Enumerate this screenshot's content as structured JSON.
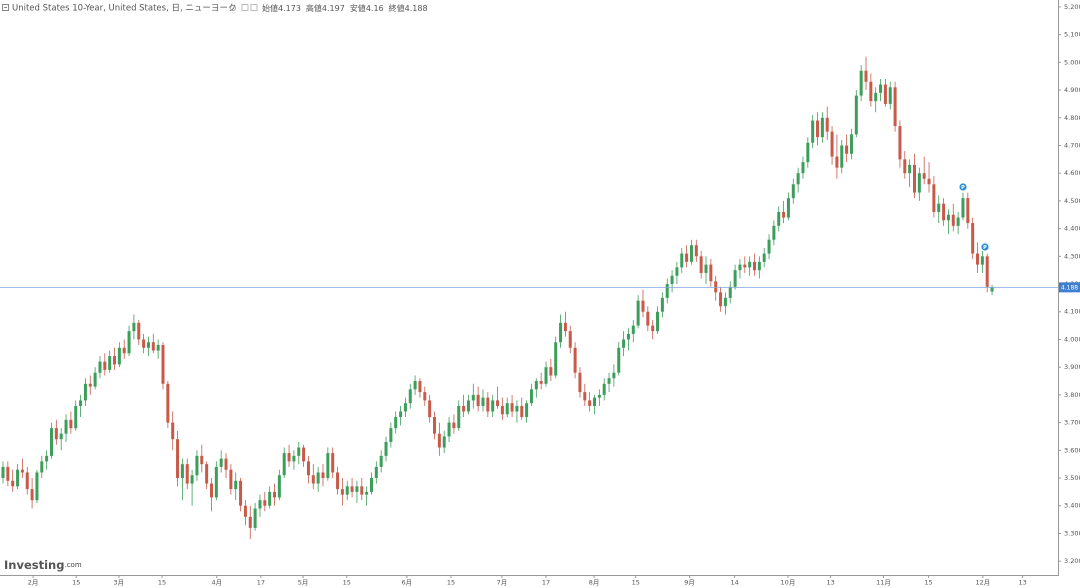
{
  "chart_data": {
    "type": "candlestick",
    "title": "United States 10-Year, United States, 日, ニューヨーク",
    "ohlc": [
      {
        "label": "始値",
        "value": 4.173
      },
      {
        "label": "高値",
        "value": 4.197
      },
      {
        "label": "安値",
        "value": 4.16
      },
      {
        "label": "終値",
        "value": 4.188
      }
    ],
    "up_color": "#3c9e5a",
    "down_color": "#c85a4a",
    "price_line": 4.188,
    "price_line_color": "#7fa9dd",
    "markers": [
      "P",
      "P"
    ],
    "watermark": {
      "brand": "Investing",
      "suffix": ".com"
    },
    "xlim": [
      -0.62,
      217.6
    ],
    "xticks": [
      {
        "value": 6.2,
        "label": "2月"
      },
      {
        "value": 15.1,
        "label": "15"
      },
      {
        "value": 23.9,
        "label": "3月"
      },
      {
        "value": 32.8,
        "label": "15"
      },
      {
        "value": 44.1,
        "label": "4月"
      },
      {
        "value": 53.2,
        "label": "17"
      },
      {
        "value": 61.9,
        "label": "5月"
      },
      {
        "value": 70.9,
        "label": "15"
      },
      {
        "value": 83.3,
        "label": "6月"
      },
      {
        "value": 92.4,
        "label": "15"
      },
      {
        "value": 102.9,
        "label": "7月"
      },
      {
        "value": 112,
        "label": "17"
      },
      {
        "value": 121.9,
        "label": "8月"
      },
      {
        "value": 130.5,
        "label": "15"
      },
      {
        "value": 141.6,
        "label": "9月"
      },
      {
        "value": 150.9,
        "label": "14"
      },
      {
        "value": 161.9,
        "label": "10月"
      },
      {
        "value": 170.7,
        "label": "13"
      },
      {
        "value": 181.6,
        "label": "11月"
      },
      {
        "value": 190.9,
        "label": "15"
      },
      {
        "value": 202.1,
        "label": "12月"
      },
      {
        "value": 210.3,
        "label": "13"
      }
    ],
    "ylim": [
      3.15,
      5.225
    ],
    "yticks": [
      {
        "value": 3.2,
        "label": "3.200"
      },
      {
        "value": 3.3,
        "label": "3.300"
      },
      {
        "value": 3.4,
        "label": "3.400"
      },
      {
        "value": 3.5,
        "label": "3.500"
      },
      {
        "value": 3.6,
        "label": "3.600"
      },
      {
        "value": 3.7,
        "label": "3.700"
      },
      {
        "value": 3.8,
        "label": "3.800"
      },
      {
        "value": 3.9,
        "label": "3.900"
      },
      {
        "value": 4.0,
        "label": "4.000"
      },
      {
        "value": 4.1,
        "label": "4.100"
      },
      {
        "value": 4.2,
        "label": "4.200"
      },
      {
        "value": 4.3,
        "label": "4.300"
      },
      {
        "value": 4.4,
        "label": "4.400"
      },
      {
        "value": 4.5,
        "label": "4.500"
      },
      {
        "value": 4.6,
        "label": "4.600"
      },
      {
        "value": 4.7,
        "label": "4.700"
      },
      {
        "value": 4.8,
        "label": "4.800"
      },
      {
        "value": 4.9,
        "label": "4.900"
      },
      {
        "value": 5.0,
        "label": "5.000"
      },
      {
        "value": 5.1,
        "label": "5.100"
      },
      {
        "value": 5.2,
        "label": "5.200"
      }
    ],
    "candles": [
      [
        3.5,
        3.56,
        3.48,
        3.54
      ],
      [
        3.54,
        3.56,
        3.47,
        3.49
      ],
      [
        3.49,
        3.53,
        3.45,
        3.47
      ],
      [
        3.47,
        3.55,
        3.46,
        3.53
      ],
      [
        3.53,
        3.57,
        3.5,
        3.52
      ],
      [
        3.52,
        3.54,
        3.44,
        3.46
      ],
      [
        3.46,
        3.5,
        3.39,
        3.42
      ],
      [
        3.42,
        3.53,
        3.41,
        3.52
      ],
      [
        3.52,
        3.58,
        3.5,
        3.56
      ],
      [
        3.56,
        3.6,
        3.53,
        3.58
      ],
      [
        3.58,
        3.7,
        3.57,
        3.68
      ],
      [
        3.68,
        3.71,
        3.62,
        3.64
      ],
      [
        3.64,
        3.68,
        3.6,
        3.66
      ],
      [
        3.66,
        3.73,
        3.63,
        3.71
      ],
      [
        3.71,
        3.74,
        3.66,
        3.68
      ],
      [
        3.68,
        3.78,
        3.67,
        3.76
      ],
      [
        3.76,
        3.8,
        3.72,
        3.78
      ],
      [
        3.78,
        3.86,
        3.76,
        3.84
      ],
      [
        3.84,
        3.87,
        3.8,
        3.83
      ],
      [
        3.83,
        3.9,
        3.82,
        3.88
      ],
      [
        3.88,
        3.94,
        3.86,
        3.92
      ],
      [
        3.92,
        3.95,
        3.87,
        3.89
      ],
      [
        3.89,
        3.96,
        3.88,
        3.94
      ],
      [
        3.94,
        3.97,
        3.89,
        3.91
      ],
      [
        3.91,
        3.99,
        3.9,
        3.97
      ],
      [
        3.97,
        4.0,
        3.93,
        3.95
      ],
      [
        3.95,
        4.05,
        3.94,
        4.03
      ],
      [
        4.03,
        4.09,
        4.0,
        4.06
      ],
      [
        4.06,
        4.07,
        3.98,
        4.0
      ],
      [
        4.0,
        4.02,
        3.95,
        3.97
      ],
      [
        3.97,
        4.01,
        3.94,
        3.99
      ],
      [
        3.99,
        4.02,
        3.95,
        3.96
      ],
      [
        3.96,
        4.0,
        3.93,
        3.98
      ],
      [
        3.98,
        3.99,
        3.82,
        3.84
      ],
      [
        3.84,
        3.85,
        3.68,
        3.7
      ],
      [
        3.7,
        3.74,
        3.6,
        3.64
      ],
      [
        3.64,
        3.67,
        3.47,
        3.5
      ],
      [
        3.5,
        3.57,
        3.42,
        3.55
      ],
      [
        3.55,
        3.57,
        3.46,
        3.48
      ],
      [
        3.48,
        3.53,
        3.4,
        3.51
      ],
      [
        3.51,
        3.6,
        3.49,
        3.58
      ],
      [
        3.58,
        3.62,
        3.52,
        3.55
      ],
      [
        3.55,
        3.56,
        3.46,
        3.48
      ],
      [
        3.48,
        3.5,
        3.38,
        3.43
      ],
      [
        3.43,
        3.56,
        3.42,
        3.54
      ],
      [
        3.54,
        3.6,
        3.52,
        3.57
      ],
      [
        3.57,
        3.59,
        3.5,
        3.53
      ],
      [
        3.53,
        3.55,
        3.44,
        3.46
      ],
      [
        3.46,
        3.52,
        3.42,
        3.49
      ],
      [
        3.49,
        3.5,
        3.38,
        3.4
      ],
      [
        3.4,
        3.42,
        3.33,
        3.36
      ],
      [
        3.36,
        3.4,
        3.28,
        3.32
      ],
      [
        3.32,
        3.41,
        3.31,
        3.39
      ],
      [
        3.39,
        3.44,
        3.36,
        3.42
      ],
      [
        3.42,
        3.45,
        3.38,
        3.4
      ],
      [
        3.4,
        3.47,
        3.39,
        3.45
      ],
      [
        3.45,
        3.48,
        3.4,
        3.43
      ],
      [
        3.43,
        3.53,
        3.42,
        3.51
      ],
      [
        3.51,
        3.61,
        3.5,
        3.59
      ],
      [
        3.59,
        3.62,
        3.54,
        3.56
      ],
      [
        3.56,
        3.6,
        3.53,
        3.58
      ],
      [
        3.58,
        3.63,
        3.55,
        3.61
      ],
      [
        3.61,
        3.62,
        3.54,
        3.56
      ],
      [
        3.56,
        3.58,
        3.48,
        3.51
      ],
      [
        3.51,
        3.55,
        3.46,
        3.48
      ],
      [
        3.48,
        3.54,
        3.45,
        3.52
      ],
      [
        3.52,
        3.55,
        3.47,
        3.5
      ],
      [
        3.5,
        3.61,
        3.49,
        3.59
      ],
      [
        3.59,
        3.61,
        3.5,
        3.52
      ],
      [
        3.52,
        3.54,
        3.44,
        3.46
      ],
      [
        3.46,
        3.5,
        3.4,
        3.44
      ],
      [
        3.44,
        3.49,
        3.42,
        3.47
      ],
      [
        3.47,
        3.5,
        3.43,
        3.45
      ],
      [
        3.45,
        3.49,
        3.41,
        3.47
      ],
      [
        3.47,
        3.5,
        3.42,
        3.44
      ],
      [
        3.44,
        3.47,
        3.4,
        3.45
      ],
      [
        3.45,
        3.52,
        3.44,
        3.5
      ],
      [
        3.5,
        3.56,
        3.48,
        3.54
      ],
      [
        3.54,
        3.6,
        3.52,
        3.58
      ],
      [
        3.58,
        3.65,
        3.56,
        3.63
      ],
      [
        3.63,
        3.7,
        3.61,
        3.68
      ],
      [
        3.68,
        3.74,
        3.66,
        3.72
      ],
      [
        3.72,
        3.76,
        3.69,
        3.74
      ],
      [
        3.74,
        3.79,
        3.72,
        3.77
      ],
      [
        3.77,
        3.84,
        3.75,
        3.82
      ],
      [
        3.82,
        3.87,
        3.8,
        3.85
      ],
      [
        3.85,
        3.86,
        3.79,
        3.81
      ],
      [
        3.81,
        3.83,
        3.76,
        3.78
      ],
      [
        3.78,
        3.8,
        3.7,
        3.72
      ],
      [
        3.72,
        3.74,
        3.64,
        3.66
      ],
      [
        3.66,
        3.7,
        3.58,
        3.61
      ],
      [
        3.61,
        3.67,
        3.59,
        3.65
      ],
      [
        3.65,
        3.72,
        3.63,
        3.7
      ],
      [
        3.7,
        3.73,
        3.66,
        3.68
      ],
      [
        3.68,
        3.78,
        3.67,
        3.76
      ],
      [
        3.76,
        3.8,
        3.72,
        3.74
      ],
      [
        3.74,
        3.8,
        3.73,
        3.78
      ],
      [
        3.78,
        3.84,
        3.75,
        3.8
      ],
      [
        3.8,
        3.83,
        3.74,
        3.76
      ],
      [
        3.76,
        3.82,
        3.74,
        3.79
      ],
      [
        3.79,
        3.81,
        3.72,
        3.74
      ],
      [
        3.74,
        3.8,
        3.72,
        3.78
      ],
      [
        3.78,
        3.83,
        3.75,
        3.76
      ],
      [
        3.76,
        3.79,
        3.71,
        3.73
      ],
      [
        3.73,
        3.79,
        3.72,
        3.77
      ],
      [
        3.77,
        3.8,
        3.72,
        3.74
      ],
      [
        3.74,
        3.78,
        3.7,
        3.76
      ],
      [
        3.76,
        3.79,
        3.71,
        3.72
      ],
      [
        3.72,
        3.78,
        3.7,
        3.77
      ],
      [
        3.77,
        3.84,
        3.76,
        3.82
      ],
      [
        3.82,
        3.86,
        3.79,
        3.85
      ],
      [
        3.85,
        3.88,
        3.82,
        3.84
      ],
      [
        3.84,
        3.92,
        3.83,
        3.9
      ],
      [
        3.9,
        3.93,
        3.85,
        3.87
      ],
      [
        3.87,
        4.01,
        3.86,
        3.99
      ],
      [
        3.99,
        4.09,
        3.97,
        4.06
      ],
      [
        4.06,
        4.1,
        4.01,
        4.03
      ],
      [
        4.03,
        4.05,
        3.95,
        3.97
      ],
      [
        3.97,
        3.99,
        3.86,
        3.88
      ],
      [
        3.88,
        3.9,
        3.79,
        3.81
      ],
      [
        3.81,
        3.84,
        3.76,
        3.78
      ],
      [
        3.78,
        3.81,
        3.74,
        3.76
      ],
      [
        3.76,
        3.8,
        3.73,
        3.79
      ],
      [
        3.79,
        3.82,
        3.76,
        3.8
      ],
      [
        3.8,
        3.86,
        3.78,
        3.84
      ],
      [
        3.84,
        3.88,
        3.81,
        3.86
      ],
      [
        3.86,
        3.91,
        3.83,
        3.88
      ],
      [
        3.88,
        3.99,
        3.87,
        3.97
      ],
      [
        3.97,
        4.03,
        3.94,
        4.0
      ],
      [
        4.0,
        4.04,
        3.96,
        4.02
      ],
      [
        4.02,
        4.07,
        3.99,
        4.05
      ],
      [
        4.05,
        4.16,
        4.04,
        4.14
      ],
      [
        4.14,
        4.18,
        4.08,
        4.1
      ],
      [
        4.1,
        4.12,
        4.03,
        4.05
      ],
      [
        4.05,
        4.07,
        4.0,
        4.03
      ],
      [
        4.03,
        4.12,
        4.02,
        4.1
      ],
      [
        4.1,
        4.17,
        4.08,
        4.15
      ],
      [
        4.15,
        4.22,
        4.13,
        4.2
      ],
      [
        4.2,
        4.25,
        4.17,
        4.23
      ],
      [
        4.23,
        4.28,
        4.2,
        4.26
      ],
      [
        4.26,
        4.33,
        4.24,
        4.31
      ],
      [
        4.31,
        4.34,
        4.26,
        4.28
      ],
      [
        4.28,
        4.36,
        4.27,
        4.34
      ],
      [
        4.34,
        4.36,
        4.28,
        4.3
      ],
      [
        4.3,
        4.32,
        4.22,
        4.24
      ],
      [
        4.24,
        4.3,
        4.2,
        4.27
      ],
      [
        4.27,
        4.29,
        4.19,
        4.21
      ],
      [
        4.21,
        4.23,
        4.14,
        4.17
      ],
      [
        4.17,
        4.19,
        4.1,
        4.12
      ],
      [
        4.12,
        4.17,
        4.09,
        4.15
      ],
      [
        4.15,
        4.21,
        4.13,
        4.19
      ],
      [
        4.19,
        4.27,
        4.18,
        4.25
      ],
      [
        4.25,
        4.29,
        4.22,
        4.27
      ],
      [
        4.27,
        4.3,
        4.24,
        4.26
      ],
      [
        4.26,
        4.3,
        4.23,
        4.28
      ],
      [
        4.28,
        4.31,
        4.23,
        4.25
      ],
      [
        4.25,
        4.3,
        4.22,
        4.28
      ],
      [
        4.28,
        4.33,
        4.26,
        4.31
      ],
      [
        4.31,
        4.38,
        4.29,
        4.36
      ],
      [
        4.36,
        4.43,
        4.34,
        4.41
      ],
      [
        4.41,
        4.48,
        4.39,
        4.46
      ],
      [
        4.46,
        4.5,
        4.42,
        4.44
      ],
      [
        4.44,
        4.53,
        4.43,
        4.51
      ],
      [
        4.51,
        4.58,
        4.49,
        4.56
      ],
      [
        4.56,
        4.62,
        4.53,
        4.6
      ],
      [
        4.6,
        4.66,
        4.58,
        4.64
      ],
      [
        4.64,
        4.73,
        4.62,
        4.71
      ],
      [
        4.71,
        4.81,
        4.69,
        4.79
      ],
      [
        4.79,
        4.82,
        4.7,
        4.73
      ],
      [
        4.73,
        4.82,
        4.71,
        4.8
      ],
      [
        4.8,
        4.84,
        4.72,
        4.75
      ],
      [
        4.75,
        4.77,
        4.63,
        4.66
      ],
      [
        4.66,
        4.74,
        4.58,
        4.62
      ],
      [
        4.62,
        4.72,
        4.6,
        4.7
      ],
      [
        4.7,
        4.74,
        4.64,
        4.67
      ],
      [
        4.67,
        4.76,
        4.65,
        4.74
      ],
      [
        4.74,
        4.9,
        4.73,
        4.88
      ],
      [
        4.88,
        4.99,
        4.86,
        4.97
      ],
      [
        4.97,
        5.02,
        4.9,
        4.93
      ],
      [
        4.93,
        4.96,
        4.84,
        4.86
      ],
      [
        4.86,
        4.91,
        4.82,
        4.89
      ],
      [
        4.89,
        4.94,
        4.86,
        4.92
      ],
      [
        4.92,
        4.94,
        4.84,
        4.85
      ],
      [
        4.85,
        4.93,
        4.83,
        4.91
      ],
      [
        4.91,
        4.93,
        4.75,
        4.77
      ],
      [
        4.77,
        4.79,
        4.62,
        4.65
      ],
      [
        4.65,
        4.68,
        4.58,
        4.6
      ],
      [
        4.6,
        4.65,
        4.55,
        4.63
      ],
      [
        4.63,
        4.67,
        4.51,
        4.53
      ],
      [
        4.53,
        4.62,
        4.5,
        4.6
      ],
      [
        4.6,
        4.66,
        4.56,
        4.58
      ],
      [
        4.58,
        4.64,
        4.53,
        4.56
      ],
      [
        4.56,
        4.59,
        4.44,
        4.46
      ],
      [
        4.46,
        4.52,
        4.42,
        4.49
      ],
      [
        4.49,
        4.51,
        4.41,
        4.43
      ],
      [
        4.43,
        4.47,
        4.38,
        4.45
      ],
      [
        4.45,
        4.49,
        4.39,
        4.41
      ],
      [
        4.41,
        4.46,
        4.38,
        4.44
      ],
      [
        4.44,
        4.53,
        4.43,
        4.51
      ],
      [
        4.51,
        4.53,
        4.4,
        4.42
      ],
      [
        4.42,
        4.44,
        4.29,
        4.31
      ],
      [
        4.31,
        4.35,
        4.24,
        4.27
      ],
      [
        4.27,
        4.32,
        4.24,
        4.3
      ],
      [
        4.3,
        4.31,
        4.17,
        4.19
      ],
      [
        4.173,
        4.197,
        4.16,
        4.188
      ]
    ]
  }
}
